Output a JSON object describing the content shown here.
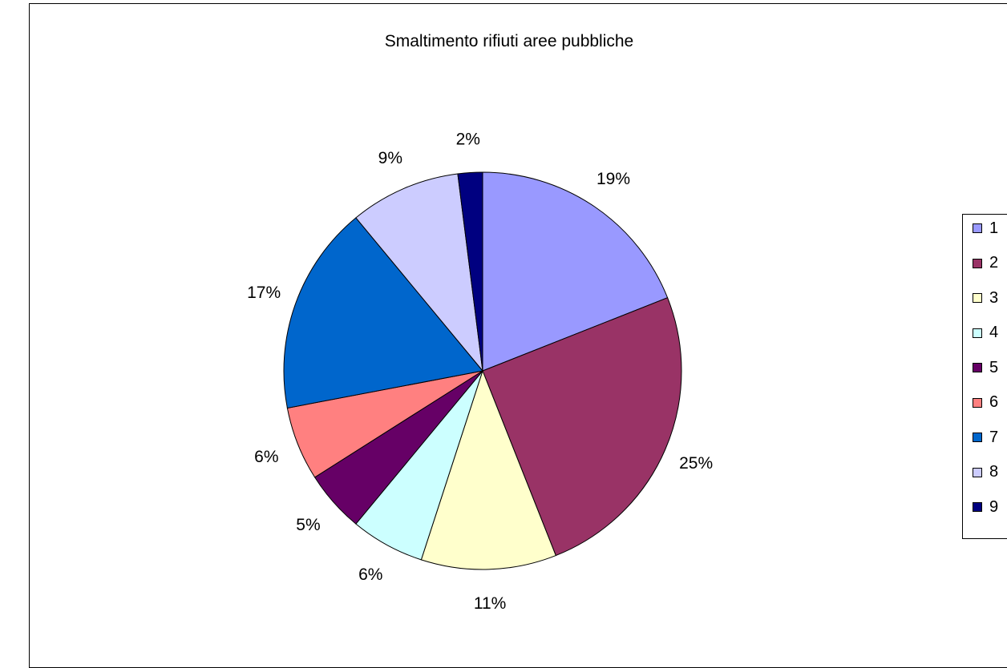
{
  "chart_data": {
    "type": "pie",
    "title": "Smaltimento rifiuti aree pubbliche",
    "categories": [
      "1",
      "2",
      "3",
      "4",
      "5",
      "6",
      "7",
      "8",
      "9"
    ],
    "values": [
      19,
      25,
      11,
      6,
      5,
      6,
      17,
      9,
      2
    ],
    "labels": [
      "19%",
      "25%",
      "11%",
      "6%",
      "5%",
      "6%",
      "17%",
      "9%",
      "2%"
    ],
    "colors": [
      "#9999FF",
      "#993366",
      "#FFFFCC",
      "#CCFFFF",
      "#660066",
      "#FF8080",
      "#0066CC",
      "#CCCCFF",
      "#000080"
    ],
    "legend_position": "right"
  }
}
